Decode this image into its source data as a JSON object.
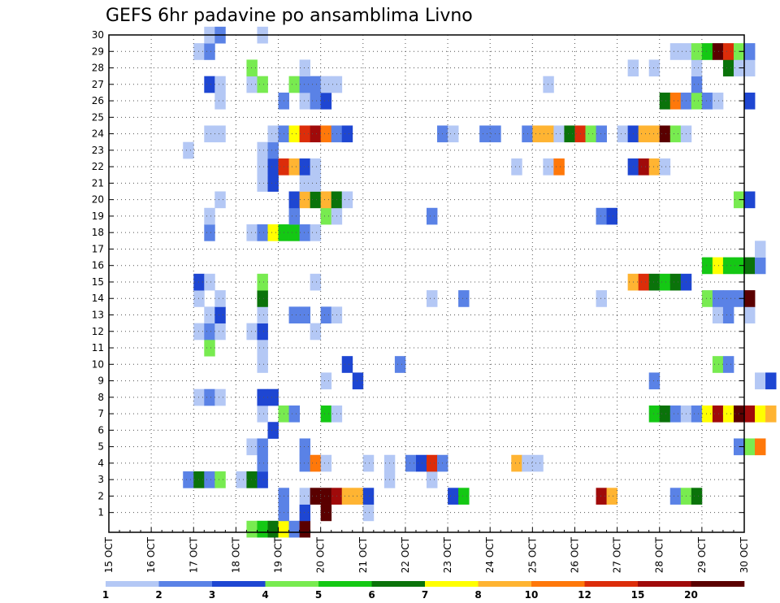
{
  "title": "GEFS 6hr padavine po ansamblima Livno",
  "chart_data": {
    "type": "heatmap",
    "title": "GEFS 6hr padavine po ansamblima Livno",
    "x_ticks": [
      "15 OCT",
      "16 OCT",
      "17 OCT",
      "18 OCT",
      "19 OCT",
      "20 OCT",
      "21 OCT",
      "22 OCT",
      "23 OCT",
      "24 OCT",
      "25 OCT",
      "26 OCT",
      "27 OCT",
      "28 OCT",
      "29 OCT",
      "30 OCT"
    ],
    "xlim": [
      "15 OCT 00Z",
      "30 OCT 00Z"
    ],
    "steps_per_day": 4,
    "y_ticks": [
      1,
      2,
      3,
      4,
      5,
      6,
      7,
      8,
      9,
      10,
      11,
      12,
      13,
      14,
      15,
      16,
      17,
      18,
      19,
      20,
      21,
      22,
      23,
      24,
      25,
      26,
      27,
      28,
      29,
      30
    ],
    "ylim": [
      0,
      30
    ],
    "grid": true,
    "colorbar": {
      "labels": [
        "1",
        "2",
        "3",
        "4",
        "5",
        "6",
        "7",
        "8",
        "10",
        "12",
        "15",
        "20"
      ],
      "colors": [
        "#b4c8f5",
        "#5a82e6",
        "#1e46d2",
        "#78eb50",
        "#14c814",
        "#0a730a",
        "#ffff00",
        "#ffb432",
        "#ff780a",
        "#dc2d0a",
        "#a00a0a",
        "#5a0000"
      ]
    },
    "cells": [
      [
        0,
        13,
        3
      ],
      [
        0,
        14,
        4
      ],
      [
        0,
        15,
        5
      ],
      [
        0,
        16,
        6
      ],
      [
        0,
        17,
        1
      ],
      [
        0,
        18,
        11
      ],
      [
        1,
        16,
        1
      ],
      [
        1,
        18,
        2
      ],
      [
        1,
        20,
        11
      ],
      [
        1,
        24,
        0
      ],
      [
        2,
        16,
        1
      ],
      [
        2,
        18,
        0
      ],
      [
        2,
        19,
        11
      ],
      [
        2,
        20,
        11
      ],
      [
        2,
        21,
        10
      ],
      [
        2,
        22,
        7
      ],
      [
        2,
        23,
        7
      ],
      [
        2,
        24,
        2
      ],
      [
        2,
        32,
        2
      ],
      [
        2,
        33,
        4
      ],
      [
        2,
        46,
        10
      ],
      [
        2,
        47,
        7
      ],
      [
        2,
        53,
        1
      ],
      [
        2,
        54,
        3
      ],
      [
        2,
        55,
        5
      ],
      [
        3,
        7,
        1
      ],
      [
        3,
        8,
        5
      ],
      [
        3,
        9,
        1
      ],
      [
        3,
        10,
        3
      ],
      [
        3,
        12,
        0
      ],
      [
        3,
        13,
        5
      ],
      [
        3,
        14,
        2
      ],
      [
        3,
        26,
        0
      ],
      [
        3,
        30,
        0
      ],
      [
        4,
        14,
        1
      ],
      [
        4,
        18,
        1
      ],
      [
        4,
        19,
        8
      ],
      [
        4,
        20,
        0
      ],
      [
        4,
        24,
        0
      ],
      [
        4,
        26,
        0
      ],
      [
        4,
        28,
        1
      ],
      [
        4,
        29,
        2
      ],
      [
        4,
        30,
        9
      ],
      [
        4,
        31,
        1
      ],
      [
        4,
        38,
        7
      ],
      [
        4,
        39,
        0
      ],
      [
        4,
        40,
        0
      ],
      [
        5,
        13,
        0
      ],
      [
        5,
        14,
        1
      ],
      [
        5,
        18,
        1
      ],
      [
        5,
        59,
        1
      ],
      [
        5,
        60,
        3
      ],
      [
        5,
        61,
        8
      ],
      [
        6,
        15,
        2
      ],
      [
        7,
        14,
        0
      ],
      [
        7,
        16,
        3
      ],
      [
        7,
        17,
        1
      ],
      [
        7,
        20,
        4
      ],
      [
        7,
        21,
        0
      ],
      [
        7,
        51,
        4
      ],
      [
        7,
        52,
        5
      ],
      [
        7,
        53,
        1
      ],
      [
        7,
        54,
        0
      ],
      [
        7,
        55,
        1
      ],
      [
        7,
        56,
        6
      ],
      [
        7,
        57,
        10
      ],
      [
        7,
        58,
        6
      ],
      [
        7,
        59,
        11
      ],
      [
        7,
        60,
        10
      ],
      [
        7,
        61,
        6
      ],
      [
        7,
        62,
        7
      ],
      [
        8,
        8,
        0
      ],
      [
        8,
        9,
        1
      ],
      [
        8,
        10,
        0
      ],
      [
        8,
        14,
        2
      ],
      [
        8,
        15,
        2
      ],
      [
        9,
        20,
        0
      ],
      [
        9,
        23,
        2
      ],
      [
        9,
        51,
        1
      ],
      [
        9,
        61,
        0
      ],
      [
        9,
        62,
        2
      ],
      [
        10,
        14,
        0
      ],
      [
        10,
        22,
        2
      ],
      [
        10,
        27,
        1
      ],
      [
        10,
        57,
        3
      ],
      [
        10,
        58,
        1
      ],
      [
        11,
        9,
        3
      ],
      [
        11,
        14,
        0
      ],
      [
        12,
        8,
        0
      ],
      [
        12,
        9,
        1
      ],
      [
        12,
        10,
        0
      ],
      [
        12,
        13,
        0
      ],
      [
        12,
        14,
        2
      ],
      [
        12,
        19,
        0
      ],
      [
        13,
        9,
        0
      ],
      [
        13,
        10,
        2
      ],
      [
        13,
        14,
        0
      ],
      [
        13,
        17,
        1
      ],
      [
        13,
        18,
        1
      ],
      [
        13,
        20,
        1
      ],
      [
        13,
        21,
        0
      ],
      [
        13,
        57,
        0
      ],
      [
        13,
        58,
        1
      ],
      [
        13,
        60,
        0
      ],
      [
        14,
        8,
        0
      ],
      [
        14,
        10,
        0
      ],
      [
        14,
        14,
        5
      ],
      [
        14,
        30,
        0
      ],
      [
        14,
        33,
        1
      ],
      [
        14,
        46,
        0
      ],
      [
        14,
        56,
        3
      ],
      [
        14,
        57,
        1
      ],
      [
        14,
        58,
        1
      ],
      [
        14,
        59,
        1
      ],
      [
        14,
        60,
        11
      ],
      [
        15,
        8,
        2
      ],
      [
        15,
        9,
        0
      ],
      [
        15,
        14,
        3
      ],
      [
        15,
        19,
        0
      ],
      [
        15,
        49,
        7
      ],
      [
        15,
        50,
        9
      ],
      [
        15,
        51,
        5
      ],
      [
        15,
        52,
        4
      ],
      [
        15,
        53,
        5
      ],
      [
        15,
        54,
        2
      ],
      [
        16,
        56,
        4
      ],
      [
        16,
        57,
        6
      ],
      [
        16,
        58,
        4
      ],
      [
        16,
        59,
        4
      ],
      [
        16,
        60,
        5
      ],
      [
        16,
        61,
        1
      ],
      [
        17,
        61,
        0
      ],
      [
        18,
        9,
        1
      ],
      [
        18,
        13,
        0
      ],
      [
        18,
        14,
        1
      ],
      [
        18,
        15,
        6
      ],
      [
        18,
        16,
        4
      ],
      [
        18,
        17,
        4
      ],
      [
        18,
        18,
        1
      ],
      [
        18,
        19,
        0
      ],
      [
        19,
        9,
        0
      ],
      [
        19,
        17,
        1
      ],
      [
        19,
        20,
        3
      ],
      [
        19,
        21,
        0
      ],
      [
        19,
        30,
        1
      ],
      [
        19,
        46,
        1
      ],
      [
        19,
        47,
        2
      ],
      [
        20,
        10,
        0
      ],
      [
        20,
        17,
        2
      ],
      [
        20,
        18,
        7
      ],
      [
        20,
        19,
        5
      ],
      [
        20,
        20,
        7
      ],
      [
        20,
        21,
        5
      ],
      [
        20,
        22,
        0
      ],
      [
        20,
        59,
        3
      ],
      [
        20,
        60,
        2
      ],
      [
        21,
        14,
        0
      ],
      [
        21,
        15,
        2
      ],
      [
        21,
        18,
        0
      ],
      [
        21,
        19,
        0
      ],
      [
        22,
        14,
        0
      ],
      [
        22,
        15,
        2
      ],
      [
        22,
        16,
        9
      ],
      [
        22,
        17,
        7
      ],
      [
        22,
        18,
        2
      ],
      [
        22,
        19,
        0
      ],
      [
        22,
        38,
        0
      ],
      [
        22,
        41,
        0
      ],
      [
        22,
        42,
        8
      ],
      [
        22,
        49,
        2
      ],
      [
        22,
        50,
        10
      ],
      [
        22,
        51,
        7
      ],
      [
        22,
        52,
        0
      ],
      [
        23,
        7,
        0
      ],
      [
        23,
        14,
        0
      ],
      [
        23,
        15,
        1
      ],
      [
        24,
        9,
        0
      ],
      [
        24,
        10,
        0
      ],
      [
        24,
        15,
        0
      ],
      [
        24,
        16,
        1
      ],
      [
        24,
        17,
        6
      ],
      [
        24,
        18,
        9
      ],
      [
        24,
        19,
        10
      ],
      [
        24,
        20,
        8
      ],
      [
        24,
        21,
        1
      ],
      [
        24,
        22,
        2
      ],
      [
        24,
        31,
        1
      ],
      [
        24,
        32,
        0
      ],
      [
        24,
        35,
        1
      ],
      [
        24,
        36,
        1
      ],
      [
        24,
        39,
        1
      ],
      [
        24,
        40,
        7
      ],
      [
        24,
        41,
        7
      ],
      [
        24,
        42,
        0
      ],
      [
        24,
        43,
        5
      ],
      [
        24,
        44,
        9
      ],
      [
        24,
        45,
        3
      ],
      [
        24,
        46,
        1
      ],
      [
        24,
        48,
        0
      ],
      [
        24,
        49,
        2
      ],
      [
        24,
        50,
        7
      ],
      [
        24,
        51,
        7
      ],
      [
        24,
        52,
        11
      ],
      [
        24,
        53,
        3
      ],
      [
        24,
        54,
        0
      ],
      [
        26,
        10,
        0
      ],
      [
        26,
        16,
        1
      ],
      [
        26,
        18,
        0
      ],
      [
        26,
        19,
        1
      ],
      [
        26,
        20,
        2
      ],
      [
        26,
        52,
        5
      ],
      [
        26,
        53,
        8
      ],
      [
        26,
        54,
        1
      ],
      [
        26,
        55,
        3
      ],
      [
        26,
        56,
        1
      ],
      [
        26,
        57,
        0
      ],
      [
        26,
        60,
        2
      ],
      [
        27,
        9,
        2
      ],
      [
        27,
        10,
        0
      ],
      [
        27,
        13,
        0
      ],
      [
        27,
        14,
        3
      ],
      [
        27,
        17,
        3
      ],
      [
        27,
        18,
        1
      ],
      [
        27,
        19,
        1
      ],
      [
        27,
        20,
        0
      ],
      [
        27,
        21,
        0
      ],
      [
        27,
        41,
        0
      ],
      [
        27,
        55,
        1
      ],
      [
        28,
        13,
        3
      ],
      [
        28,
        18,
        0
      ],
      [
        28,
        49,
        0
      ],
      [
        28,
        51,
        0
      ],
      [
        28,
        55,
        0
      ],
      [
        28,
        58,
        5
      ],
      [
        28,
        59,
        0
      ],
      [
        28,
        60,
        0
      ],
      [
        29,
        8,
        0
      ],
      [
        29,
        9,
        1
      ],
      [
        29,
        53,
        0
      ],
      [
        29,
        54,
        0
      ],
      [
        29,
        55,
        3
      ],
      [
        29,
        56,
        4
      ],
      [
        29,
        57,
        11
      ],
      [
        29,
        58,
        9
      ],
      [
        29,
        59,
        3
      ],
      [
        29,
        60,
        1
      ],
      [
        30,
        9,
        0
      ],
      [
        30,
        10,
        1
      ],
      [
        30,
        14,
        0
      ]
    ]
  }
}
